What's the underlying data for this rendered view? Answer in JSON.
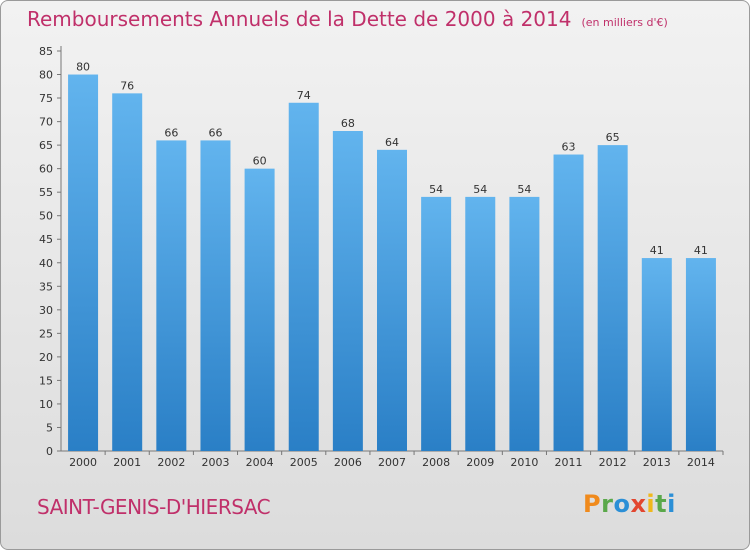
{
  "header": {
    "title": "Remboursements Annuels de la Dette de 2000 à 2014",
    "subtitle": "(en milliers d'€)"
  },
  "footer": {
    "commune": "SAINT-GENIS-D'HIERSAC",
    "logo_text": "Proxiti"
  },
  "colors": {
    "accent": "#c0306a",
    "bar_top": "#62b4ee",
    "bar_bottom": "#2a7fc6",
    "axis": "#777777"
  },
  "chart_data": {
    "type": "bar",
    "title": "Remboursements Annuels de la Dette de 2000 à 2014",
    "subtitle": "(en milliers d'€)",
    "categories": [
      "2000",
      "2001",
      "2002",
      "2003",
      "2004",
      "2005",
      "2006",
      "2007",
      "2008",
      "2009",
      "2010",
      "2011",
      "2012",
      "2013",
      "2014"
    ],
    "values": [
      80,
      76,
      66,
      66,
      60,
      74,
      68,
      64,
      54,
      54,
      54,
      63,
      65,
      41,
      41
    ],
    "ylim": [
      0,
      85
    ],
    "yticks": [
      0,
      5,
      10,
      15,
      20,
      25,
      30,
      35,
      40,
      45,
      50,
      55,
      60,
      65,
      70,
      75,
      80,
      85
    ],
    "xlabel": "",
    "ylabel": "",
    "grid": false,
    "legend": "none"
  }
}
